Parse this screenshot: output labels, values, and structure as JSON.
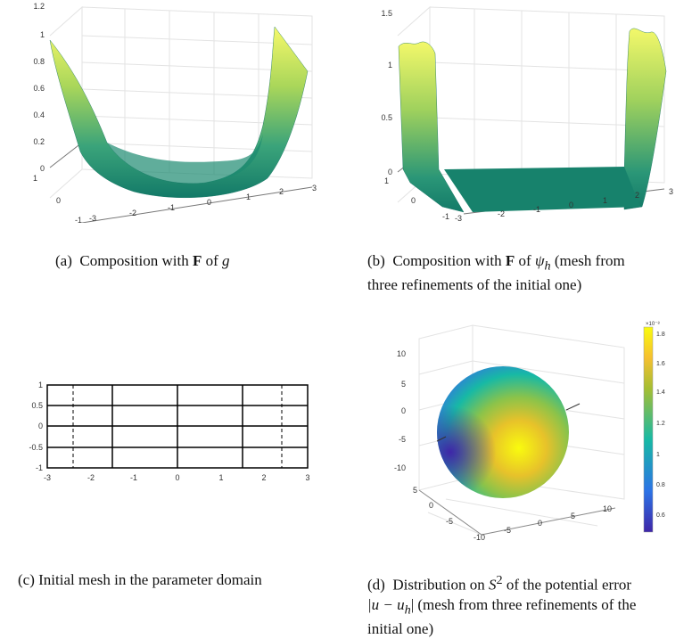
{
  "panels": {
    "a": {
      "caption_prefix": "(a)",
      "caption_text": "Composition with",
      "caption_bold": "F",
      "caption_of": "of",
      "caption_var": "g",
      "z_ticks": [
        "0",
        "0.2",
        "0.4",
        "0.6",
        "0.8",
        "1",
        "1.2"
      ],
      "y_ticks": [
        "1",
        "0",
        "-1"
      ],
      "x_ticks": [
        "-3",
        "-2",
        "-1",
        "0",
        "1",
        "2",
        "3"
      ]
    },
    "b": {
      "caption_prefix": "(b)",
      "caption_line1_text": "Composition with",
      "caption_bold": "F",
      "caption_of": "of",
      "caption_var": "ψ",
      "caption_sub": "h",
      "caption_line1_tail": "(mesh from",
      "caption_line2": "three refinements of the initial one)",
      "z_ticks": [
        "0",
        "0.5",
        "1",
        "1.5"
      ],
      "y_ticks": [
        "1",
        "0",
        "-1"
      ],
      "x_ticks": [
        "-3",
        "-2",
        "-1",
        "0",
        "1",
        "2",
        "3"
      ]
    },
    "c": {
      "caption": "(c) Initial mesh in the parameter domain",
      "y_ticks": [
        "1",
        "0.5",
        "0",
        "-0.5",
        "-1"
      ],
      "x_ticks": [
        "-3",
        "-2",
        "-1",
        "0",
        "1",
        "2",
        "3"
      ]
    },
    "d": {
      "caption_prefix": "(d)",
      "caption_line1_text": "Distribution on",
      "caption_S": "S",
      "caption_sup": "2",
      "caption_line1_tail": "of the potential error",
      "caption_line2": "|u − u",
      "caption_line2_sub": "h",
      "caption_line2_tail": "| (mesh from three refinements of the",
      "caption_line3": "initial one)",
      "z_ticks": [
        "10",
        "5",
        "0",
        "-5",
        "-10"
      ],
      "y_ticks": [
        "5",
        "0",
        "-5",
        "-10"
      ],
      "x_ticks": [
        "-5",
        "0",
        "5",
        "10"
      ],
      "colorbar_exp": "×10⁻⁸",
      "colorbar_ticks": [
        "1.8",
        "1.6",
        "1.4",
        "1.2",
        "1",
        "0.8",
        "0.6"
      ],
      "colors": {
        "low": "#3e26a8",
        "mid": "#17b9a5",
        "high": "#f9fb0e"
      }
    }
  }
}
